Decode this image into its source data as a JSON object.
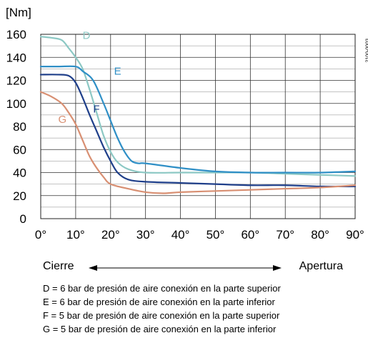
{
  "chart_data": {
    "type": "line",
    "ylabel": "[Nm]",
    "xlabel": "",
    "xlim": [
      0,
      90
    ],
    "ylim": [
      0,
      160
    ],
    "x_ticks": [
      0,
      10,
      20,
      30,
      40,
      50,
      60,
      70,
      80,
      90
    ],
    "x_tick_labels": [
      "0°",
      "10°",
      "20°",
      "30°",
      "40°",
      "50°",
      "60°",
      "70°",
      "80°",
      "90°"
    ],
    "y_ticks": [
      0,
      20,
      40,
      60,
      80,
      100,
      120,
      140,
      160
    ],
    "y_tick_labels": [
      "0",
      "20",
      "40",
      "60",
      "80",
      "100",
      "120",
      "140",
      "160"
    ],
    "grid": true,
    "doc_code": "2100-0003",
    "series": [
      {
        "name": "D",
        "color": "#8cc8c4",
        "points": [
          [
            0,
            158
          ],
          [
            3,
            157
          ],
          [
            6,
            155
          ],
          [
            8,
            148
          ],
          [
            10,
            140
          ],
          [
            12,
            130
          ],
          [
            14,
            112
          ],
          [
            16,
            92
          ],
          [
            18,
            72
          ],
          [
            20,
            58
          ],
          [
            22,
            49
          ],
          [
            25,
            43
          ],
          [
            30,
            40
          ],
          [
            40,
            40
          ],
          [
            50,
            40
          ],
          [
            60,
            40
          ],
          [
            70,
            39
          ],
          [
            80,
            38
          ],
          [
            90,
            37
          ]
        ]
      },
      {
        "name": "E",
        "color": "#2f8fc6",
        "points": [
          [
            0,
            132
          ],
          [
            5,
            132
          ],
          [
            10,
            132
          ],
          [
            12,
            128
          ],
          [
            15,
            120
          ],
          [
            18,
            100
          ],
          [
            20,
            85
          ],
          [
            22,
            70
          ],
          [
            24,
            58
          ],
          [
            26,
            50
          ],
          [
            28,
            48
          ],
          [
            30,
            48
          ],
          [
            40,
            44
          ],
          [
            50,
            41
          ],
          [
            60,
            40
          ],
          [
            70,
            40
          ],
          [
            80,
            40
          ],
          [
            90,
            41
          ]
        ]
      },
      {
        "name": "F",
        "color": "#1f3f8a",
        "points": [
          [
            0,
            125
          ],
          [
            5,
            125
          ],
          [
            8,
            124
          ],
          [
            10,
            118
          ],
          [
            12,
            105
          ],
          [
            14,
            90
          ],
          [
            16,
            76
          ],
          [
            18,
            62
          ],
          [
            20,
            50
          ],
          [
            22,
            40
          ],
          [
            25,
            34
          ],
          [
            30,
            32
          ],
          [
            40,
            31
          ],
          [
            50,
            30
          ],
          [
            60,
            29
          ],
          [
            70,
            29
          ],
          [
            80,
            28
          ],
          [
            90,
            28
          ]
        ]
      },
      {
        "name": "G",
        "color": "#d88f72",
        "points": [
          [
            0,
            110
          ],
          [
            3,
            106
          ],
          [
            6,
            100
          ],
          [
            8,
            92
          ],
          [
            10,
            82
          ],
          [
            12,
            68
          ],
          [
            14,
            54
          ],
          [
            16,
            44
          ],
          [
            18,
            36
          ],
          [
            20,
            30
          ],
          [
            25,
            26
          ],
          [
            30,
            23
          ],
          [
            35,
            22
          ],
          [
            40,
            23
          ],
          [
            50,
            24
          ],
          [
            60,
            25
          ],
          [
            70,
            26
          ],
          [
            80,
            27
          ],
          [
            90,
            29
          ]
        ]
      }
    ]
  },
  "direction": {
    "left": "Cierre",
    "right": "Apertura"
  },
  "notes": [
    "D = 6 bar de presión de aire conexión en la parte superior",
    "E = 6 bar de presión de aire conexión en la parte inferior",
    "F = 5 bar de presión de aire conexión en la parte superior",
    "G = 5 bar de presión de aire conexión en la parte inferior"
  ]
}
